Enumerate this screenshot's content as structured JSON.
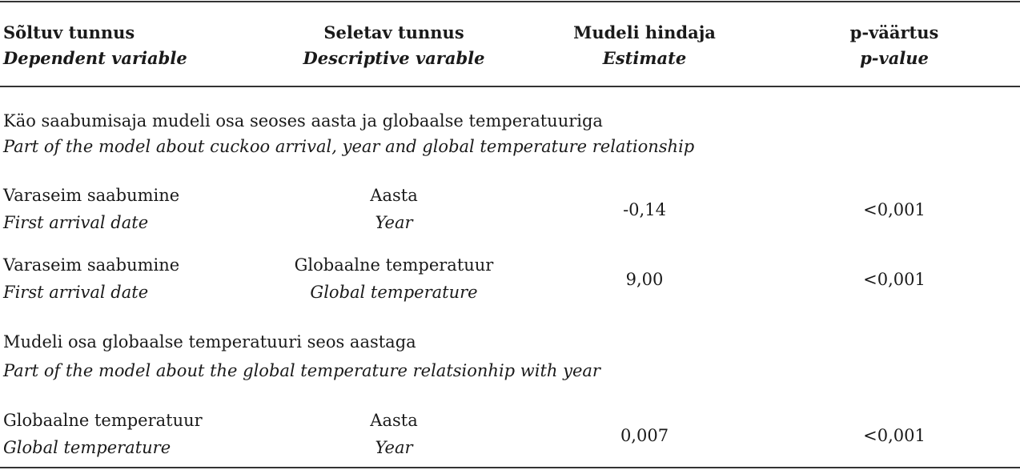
{
  "header": {
    "columns": [
      {
        "et": "Sõltuv tunnus",
        "en": "Dependent variable"
      },
      {
        "et": "Seletav tunnus",
        "en": "Descriptive varable"
      },
      {
        "et": "Mudeli hindaja",
        "en": "Estimate"
      },
      {
        "et": "p-väärtus",
        "en": "p-value"
      }
    ]
  },
  "sections": [
    {
      "title_et": "Käo saabumisaja mudeli osa seoses aasta ja globaalse temperatuuriga",
      "title_en": "Part of the model about cuckoo arrival, year and global temperature relationship",
      "rows": [
        {
          "dep_et": "Varaseim saabumine",
          "dep_en": "First arrival date",
          "desc_et": "Aasta",
          "desc_en": "Year",
          "estimate": "-0,14",
          "p": "<0,001"
        },
        {
          "dep_et": "Varaseim saabumine",
          "dep_en": "First arrival date",
          "desc_et": "Globaalne temperatuur",
          "desc_en": "Global temperature",
          "estimate": "9,00",
          "p": "<0,001"
        }
      ]
    },
    {
      "title_et": "Mudeli osa globaalse temperatuuri seos aastaga",
      "title_en": "Part of the model about the global temperature relatsionhip with year",
      "rows": [
        {
          "dep_et": "Globaalne temperatuur",
          "dep_en": "Global temperature",
          "desc_et": "Aasta",
          "desc_en": "Year",
          "estimate": "0,007",
          "p": "<0,001"
        }
      ]
    }
  ]
}
